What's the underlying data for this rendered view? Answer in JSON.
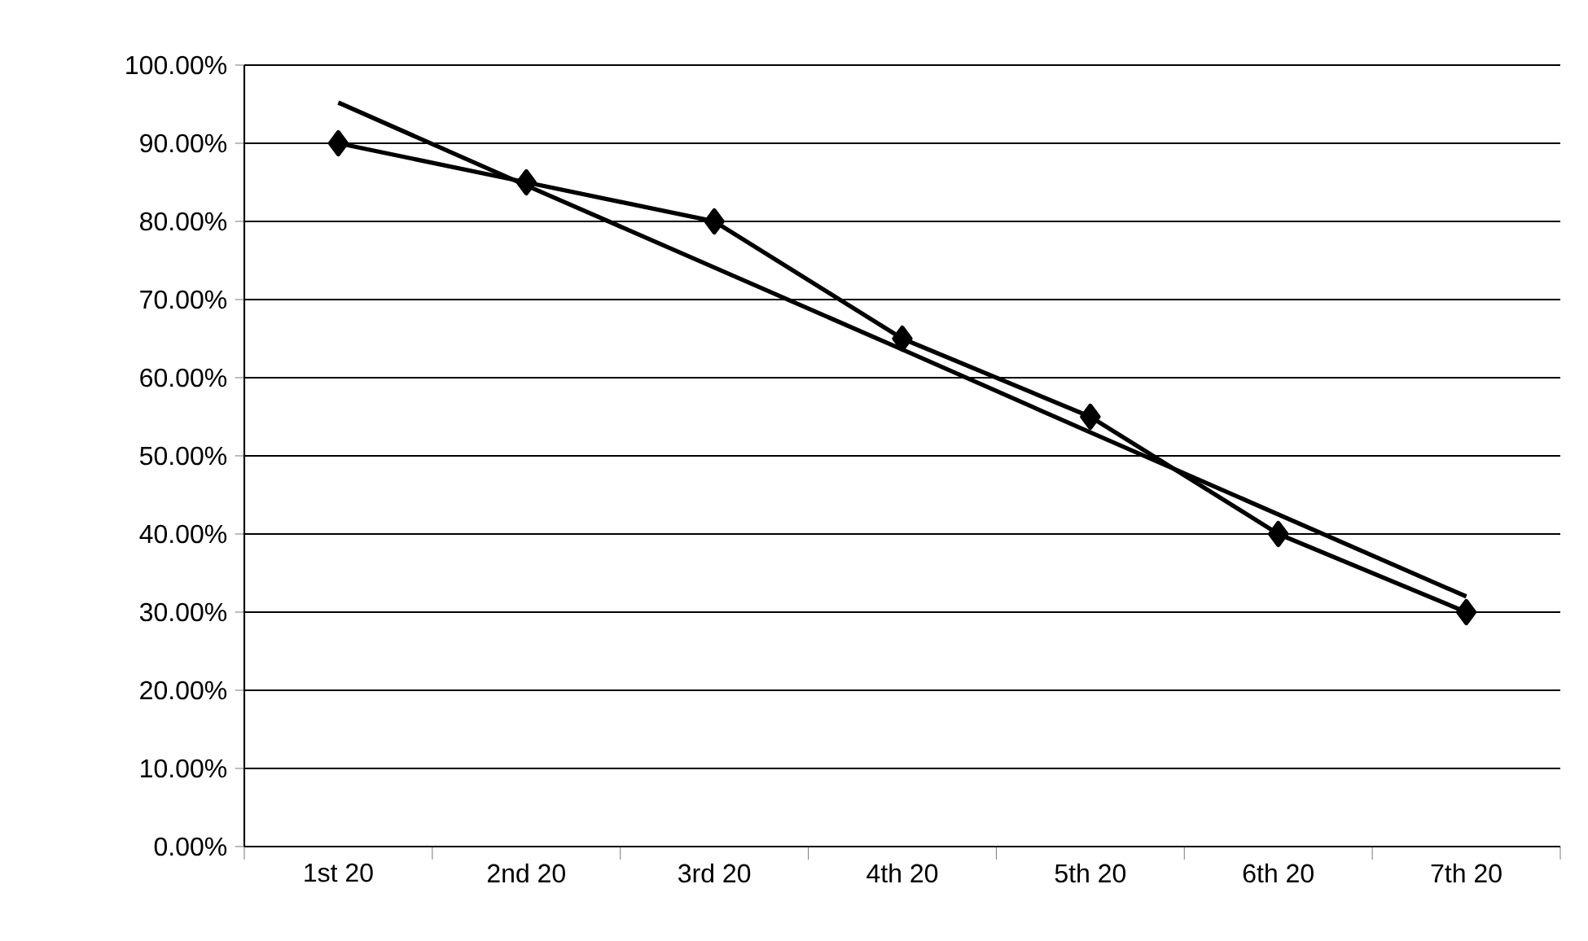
{
  "chart_data": {
    "type": "line",
    "categories": [
      "1st 20",
      "2nd 20",
      "3rd 20",
      "4th 20",
      "5th 20",
      "6th 20",
      "7th 20"
    ],
    "series": [
      {
        "color": "#000000",
        "marker": "diamond",
        "values": [
          90,
          85,
          80,
          65,
          55,
          40,
          30
        ]
      },
      {
        "color": "#000000",
        "marker": "none",
        "values": [
          95.2,
          84.6,
          74.1,
          63.6,
          53.0,
          42.5,
          32.0
        ]
      }
    ],
    "ylim": [
      0,
      100
    ],
    "yticks": [
      {
        "value": 0,
        "label": "0.00%"
      },
      {
        "value": 10,
        "label": "10.00%"
      },
      {
        "value": 20,
        "label": "20.00%"
      },
      {
        "value": 30,
        "label": "30.00%"
      },
      {
        "value": 40,
        "label": "40.00%"
      },
      {
        "value": 50,
        "label": "50.00%"
      },
      {
        "value": 60,
        "label": "60.00%"
      },
      {
        "value": 70,
        "label": "70.00%"
      },
      {
        "value": 80,
        "label": "80.00%"
      },
      {
        "value": 90,
        "label": "90.00%"
      },
      {
        "value": 100,
        "label": "100.00%"
      }
    ],
    "grid": "y",
    "line_style": "solid"
  }
}
